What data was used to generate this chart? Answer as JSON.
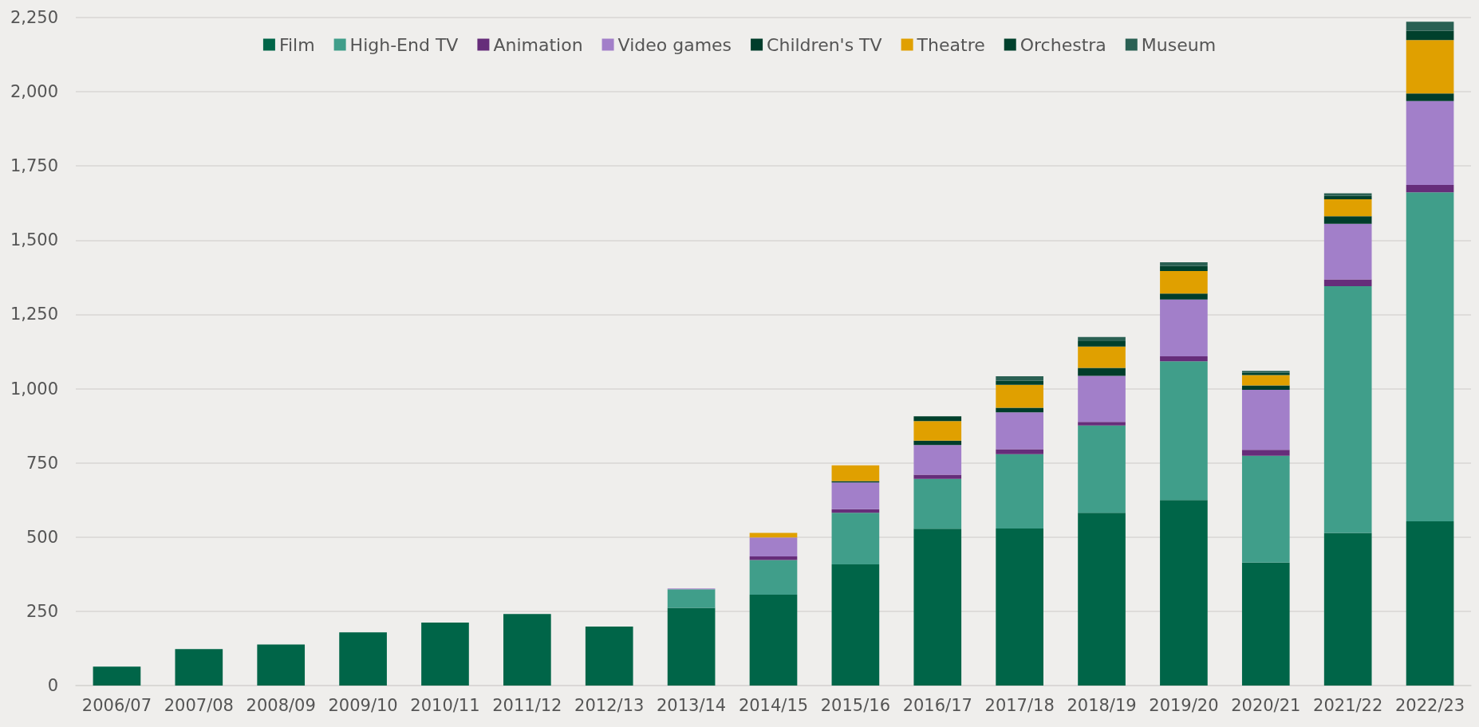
{
  "chart_data": {
    "type": "bar",
    "stacked": true,
    "categories": [
      "2006/07",
      "2007/08",
      "2008/09",
      "2009/10",
      "2010/11",
      "2011/12",
      "2012/13",
      "2013/14",
      "2014/15",
      "2015/16",
      "2016/17",
      "2017/18",
      "2018/19",
      "2019/20",
      "2020/21",
      "2021/22",
      "2022/23"
    ],
    "series": [
      {
        "name": "Film",
        "color": "#006548",
        "values": [
          64,
          123,
          138,
          179,
          212,
          241,
          199,
          262,
          306,
          408,
          528,
          529,
          582,
          625,
          414,
          514,
          553
        ]
      },
      {
        "name": "High-End TV",
        "color": "#409e8a",
        "values": [
          null,
          null,
          null,
          null,
          null,
          null,
          null,
          62,
          117,
          174,
          168,
          250,
          294,
          467,
          360,
          831,
          1108
        ]
      },
      {
        "name": "Animation",
        "color": "#662d7a",
        "values": [
          null,
          null,
          null,
          null,
          null,
          null,
          null,
          null,
          12,
          12,
          14,
          17,
          12,
          17,
          20,
          23,
          25
        ]
      },
      {
        "name": "Video games",
        "color": "#a27fc9",
        "values": [
          null,
          null,
          null,
          null,
          null,
          null,
          null,
          3,
          64,
          90,
          100,
          124,
          155,
          191,
          202,
          187,
          283
        ]
      },
      {
        "name": "Children's TV",
        "color": "#003d2b",
        "values": [
          null,
          null,
          null,
          null,
          null,
          null,
          null,
          null,
          null,
          5,
          15,
          16,
          27,
          20,
          15,
          26,
          25
        ]
      },
      {
        "name": "Theatre",
        "color": "#e0a000",
        "values": [
          null,
          null,
          null,
          null,
          null,
          null,
          null,
          null,
          15,
          53,
          66,
          77,
          72,
          76,
          35,
          57,
          180
        ]
      },
      {
        "name": "Orchestra",
        "color": "#00402c",
        "values": [
          null,
          null,
          null,
          null,
          null,
          null,
          null,
          null,
          null,
          null,
          16,
          13,
          18,
          17,
          7,
          12,
          32
        ]
      },
      {
        "name": "Museum",
        "color": "#2a6053",
        "values": [
          null,
          null,
          null,
          null,
          null,
          null,
          null,
          null,
          null,
          null,
          null,
          16,
          14,
          13,
          7,
          8,
          30
        ]
      }
    ],
    "ylim": [
      0,
      2250
    ],
    "yticks": [
      0,
      250,
      500,
      750,
      {
        "value": 1000,
        "label": "1,000"
      },
      {
        "value": 1250,
        "label": "1,250"
      },
      {
        "value": 1500,
        "label": "1,500"
      },
      {
        "value": 1750,
        "label": "1,750"
      },
      {
        "value": 2000,
        "label": "2,000"
      },
      {
        "value": 2250,
        "label": "2,250"
      }
    ],
    "grid": "y",
    "legend": "top"
  }
}
